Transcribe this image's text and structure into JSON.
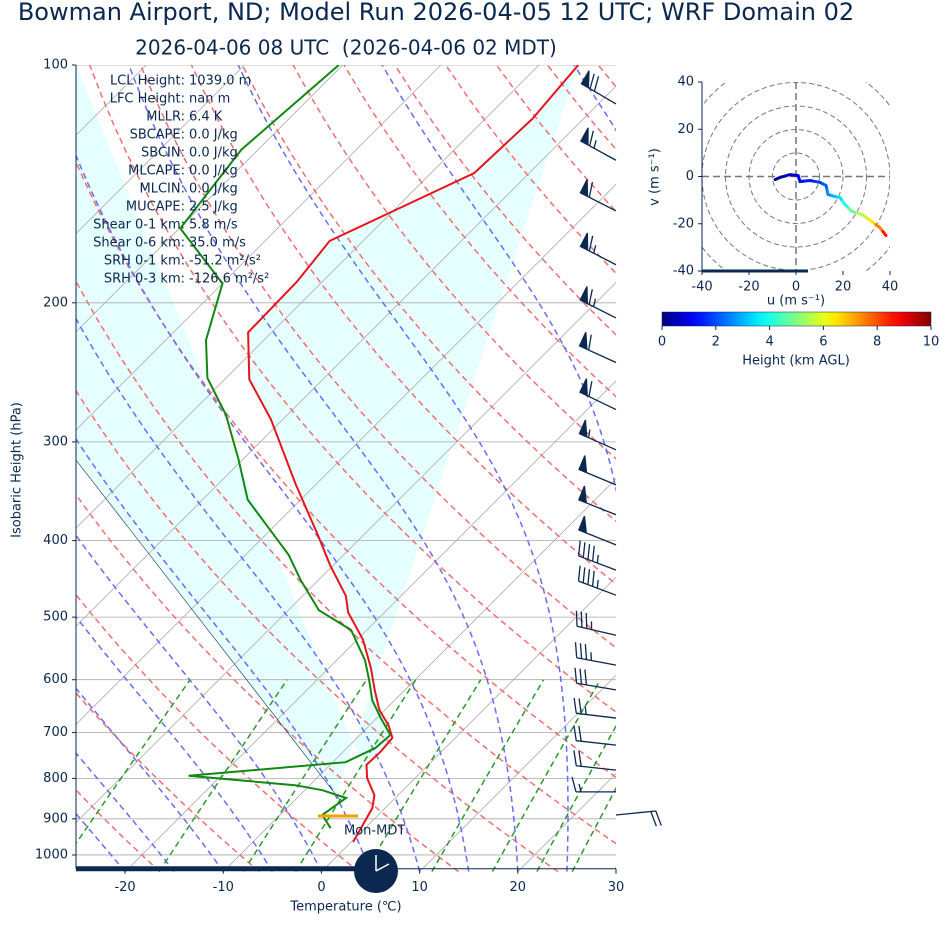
{
  "chart_data": [
    {
      "type": "skewt",
      "title": "Bowman Airport, ND; Model Run 2026-04-05 12 UTC; WRF Domain 02",
      "subtitle": "2026-04-06 08 UTC  (2026-04-06 02 MDT)",
      "xlabel": "Temperature (℃)",
      "ylabel": "Isobaric Height (hPa)",
      "xlim": [
        -25,
        30
      ],
      "ylim": [
        1050,
        100
      ],
      "log_y": true,
      "xticks": [
        -20,
        -10,
        0,
        10,
        20,
        30
      ],
      "yticks": [
        100,
        200,
        300,
        400,
        500,
        600,
        700,
        800,
        900,
        1000
      ],
      "grid": true,
      "temperature": {
        "color": "#e8141c",
        "pressure": [
          963,
          872,
          840,
          799,
          769,
          741,
          711,
          685,
          655,
          618,
          580,
          534,
          493,
          470,
          430,
          394,
          340,
          281,
          250,
          218,
          188,
          167,
          137,
          117,
          100
        ],
        "values": [
          0.2,
          -1.3,
          -2.4,
          -4.9,
          -6.3,
          -6.2,
          -6.4,
          -8.1,
          -10.6,
          -13.1,
          -15.7,
          -19.4,
          -23.7,
          -25.6,
          -30.3,
          -34.6,
          -42.0,
          -51.2,
          -57.5,
          -62.4,
          -62.6,
          -63.4,
          -55.6,
          -55.2,
          -56.0
        ]
      },
      "dewpoint": {
        "color": "#118811",
        "pressure": [
          925,
          890,
          847,
          828,
          816,
          794,
          763,
          732,
          705,
          671,
          637,
          600,
          567,
          519,
          490,
          449,
          417,
          388,
          355,
          316,
          277,
          249,
          223,
          189,
          161,
          128,
          100
        ],
        "values": [
          -3.5,
          -5.7,
          -5.0,
          -8.2,
          -11.5,
          -23.3,
          -8.7,
          -7.1,
          -6.9,
          -9.6,
          -12.3,
          -14.7,
          -17.1,
          -21.6,
          -26.9,
          -31.8,
          -35.6,
          -40.0,
          -45.4,
          -50.4,
          -56.3,
          -61.9,
          -65.9,
          -70.0,
          -79.9,
          -81.7,
          -80.4
        ]
      },
      "wind": {
        "color": "#0a2850",
        "pressure": [
          890,
          832,
          781,
          726,
          671,
          618,
          575,
          527,
          469,
          436,
          405,
          371,
          340,
          307,
          273,
          238,
          209,
          179,
          153,
          132,
          112
        ],
        "u": [
          -20,
          15,
          18,
          18,
          25,
          30,
          32,
          35,
          40,
          42,
          45,
          45,
          48,
          50,
          52,
          55,
          60,
          58,
          55,
          55,
          60
        ],
        "v": [
          -2,
          0,
          -2,
          -2,
          -3,
          -5,
          -6,
          -8,
          -15,
          -16,
          -18,
          -18,
          -20,
          -22,
          -25,
          -25,
          -30,
          -30,
          -28,
          -30,
          -35
        ]
      },
      "stats": [
        {
          "label": "LCL Height:",
          "value": "1039.0 m"
        },
        {
          "label": "LFC Height:",
          "value": "nan m"
        },
        {
          "label": "MLLR:",
          "value": "6.4 K"
        },
        {
          "label": "SBCAPE:",
          "value": "0.0 J/kg"
        },
        {
          "label": "SBCIN:",
          "value": "0.0 J/kg"
        },
        {
          "label": "MLCAPE:",
          "value": "0.0 J/kg"
        },
        {
          "label": "MLCIN:",
          "value": "0.0 J/kg"
        },
        {
          "label": "MUCAPE:",
          "value": "2.5 J/kg"
        },
        {
          "label": "Shear 0-1 km:",
          "value": "5.8 m/s"
        },
        {
          "label": "Shear 0-6 km:",
          "value": "35.0 m/s"
        },
        {
          "label": "SRH 0-1 km:",
          "value": "-51.2 m²/s²"
        },
        {
          "label": "SRH 0-3 km:",
          "value": "-126.6 m²/s²"
        }
      ],
      "annotation": "Mon-MDT"
    },
    {
      "type": "hodograph",
      "xlabel": "u (m s⁻¹)",
      "ylabel": "v (m s⁻¹)",
      "xlim": [
        -40,
        40
      ],
      "ylim": [
        -40,
        40
      ],
      "xticks": [
        -40,
        -20,
        0,
        20,
        40
      ],
      "yticks": [
        -40,
        -20,
        0,
        20,
        40
      ],
      "u": [
        -8.9,
        -6.8,
        -2.6,
        0.9,
        1.7,
        6.0,
        10.2,
        12.8,
        13.6,
        16.6,
        18.7,
        20.9,
        23.8,
        28.1,
        32.3,
        35.7,
        38.3
      ],
      "v": [
        -1.3,
        -0.4,
        0.8,
        0.4,
        -2.1,
        -1.7,
        -2.5,
        -3.8,
        -7.6,
        -8.5,
        -8.9,
        -11.9,
        -14.8,
        -16.1,
        -19.1,
        -21.6,
        -25.0
      ],
      "height": [
        0,
        0.3,
        0.6,
        0.9,
        1.2,
        1.5,
        1.8,
        2.2,
        2.6,
        3.0,
        3.4,
        4.0,
        4.8,
        5.5,
        6.5,
        7.5,
        8.5
      ],
      "colorbar": {
        "label": "Height (km AGL)",
        "lim": [
          0,
          10
        ],
        "ticks": [
          0,
          2,
          4,
          6,
          8,
          10
        ],
        "cmap": "jet"
      }
    }
  ]
}
